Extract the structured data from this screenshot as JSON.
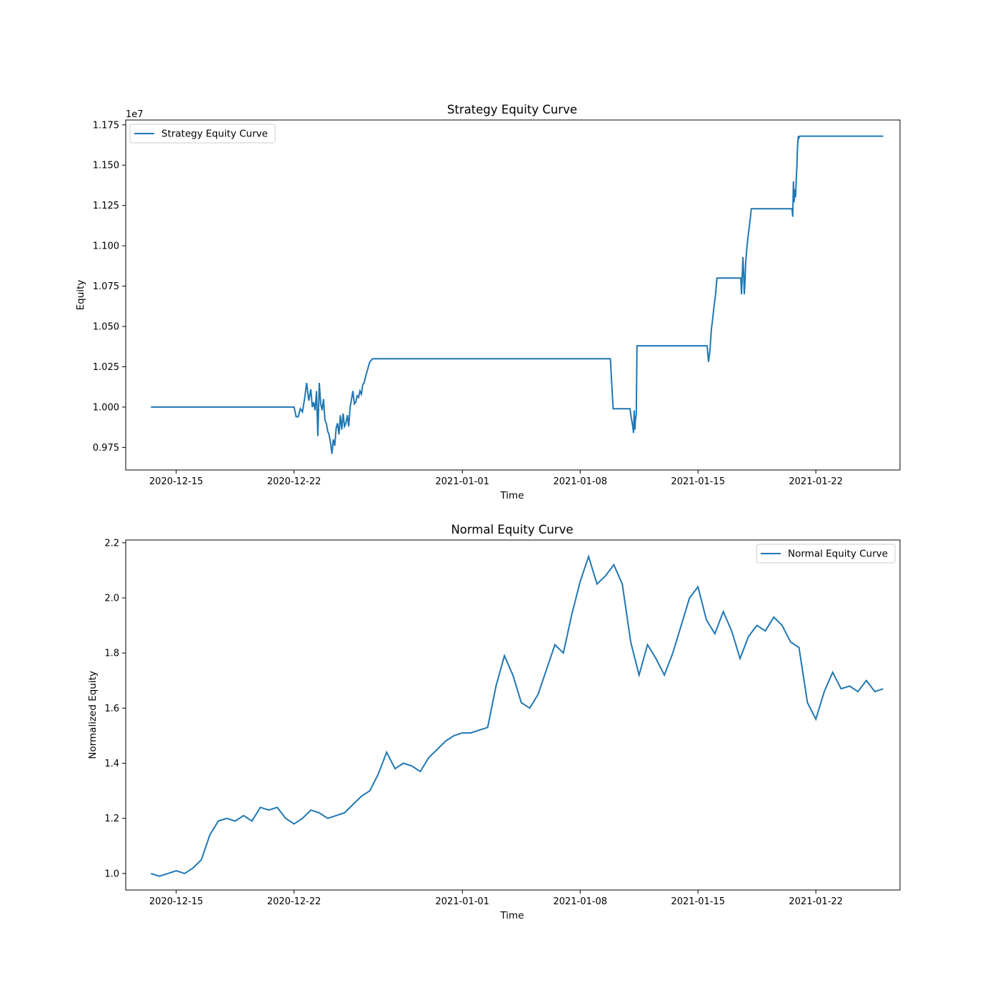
{
  "chart_data": [
    {
      "type": "line",
      "title": "Strategy Equity Curve",
      "xlabel": "Time",
      "ylabel": "Equity",
      "offset_text": "1e7",
      "multiplier": 10000000,
      "xlim": [
        "2020-12-12",
        "2021-01-27"
      ],
      "ylim": [
        9.61,
        11.78
      ],
      "x_ticks": [
        "2020-12-15",
        "2020-12-22",
        "2021-01-01",
        "2021-01-08",
        "2021-01-15",
        "2021-01-22"
      ],
      "y_ticks": [
        9.75,
        10.0,
        10.25,
        10.5,
        10.75,
        11.0,
        11.25,
        11.5,
        11.75
      ],
      "y_tick_labels": [
        "0.975",
        "1.000",
        "1.025",
        "1.050",
        "1.075",
        "1.100",
        "1.125",
        "1.150",
        "1.175"
      ],
      "legend_position": "upper-left",
      "grid": false,
      "series": [
        {
          "name": "Strategy Equity Curve",
          "color": "#1f77b4",
          "x": [
            "2020-12-13 12:00",
            "2020-12-22 00:00",
            "2020-12-22 03:00",
            "2020-12-22 06:00",
            "2020-12-22 09:00",
            "2020-12-22 12:00",
            "2020-12-22 15:00",
            "2020-12-22 18:00",
            "2020-12-22 21:00",
            "2020-12-23 00:00",
            "2020-12-23 02:00",
            "2020-12-23 04:00",
            "2020-12-23 06:00",
            "2020-12-23 08:00",
            "2020-12-23 10:00",
            "2020-12-23 12:00",
            "2020-12-23 14:00",
            "2020-12-23 16:00",
            "2020-12-23 18:00",
            "2020-12-23 20:00",
            "2020-12-23 22:00",
            "2020-12-24 00:00",
            "2020-12-24 02:00",
            "2020-12-24 04:00",
            "2020-12-24 06:00",
            "2020-12-24 08:00",
            "2020-12-24 10:00",
            "2020-12-24 12:00",
            "2020-12-24 14:00",
            "2020-12-24 16:00",
            "2020-12-24 18:00",
            "2020-12-24 20:00",
            "2020-12-24 22:00",
            "2020-12-25 00:00",
            "2020-12-25 02:00",
            "2020-12-25 04:00",
            "2020-12-25 06:00",
            "2020-12-25 08:00",
            "2020-12-25 10:00",
            "2020-12-25 12:00",
            "2020-12-25 14:00",
            "2020-12-25 16:00",
            "2020-12-25 18:00",
            "2020-12-25 20:00",
            "2020-12-25 22:00",
            "2020-12-26 00:00",
            "2020-12-26 02:00",
            "2020-12-26 04:00",
            "2020-12-26 06:00",
            "2020-12-26 08:00",
            "2020-12-26 10:00",
            "2020-12-26 12:00",
            "2020-12-26 14:00",
            "2020-12-26 16:00",
            "2021-01-09 19:00",
            "2021-01-09 23:00",
            "2021-01-10 23:00",
            "2021-01-11 01:00",
            "2021-01-11 03:00",
            "2021-01-11 04:00",
            "2021-01-11 05:00",
            "2021-01-11 06:00",
            "2021-01-11 07:00",
            "2021-01-11 08:00",
            "2021-01-11 09:00",
            "2021-01-15 13:00",
            "2021-01-15 15:00",
            "2021-01-15 17:00",
            "2021-01-15 19:00",
            "2021-01-15 21:00",
            "2021-01-15 23:00",
            "2021-01-16 01:00",
            "2021-01-16 03:00",
            "2021-01-16 05:00",
            "2021-01-17 13:00",
            "2021-01-17 14:00",
            "2021-01-17 16:00",
            "2021-01-17 17:00",
            "2021-01-17 18:00",
            "2021-01-17 19:00",
            "2021-01-17 20:00",
            "2021-01-17 22:00",
            "2021-01-18 00:00",
            "2021-01-18 02:00",
            "2021-01-18 04:00",
            "2021-01-18 06:00",
            "2021-01-20 14:00",
            "2021-01-20 15:00",
            "2021-01-20 16:00",
            "2021-01-20 17:00",
            "2021-01-20 18:00",
            "2021-01-20 19:00",
            "2021-01-20 20:00",
            "2021-01-20 21:00",
            "2021-01-20 22:00",
            "2021-01-20 23:00",
            "2021-01-21 00:00",
            "2021-01-21 01:00",
            "2021-01-21 02:00",
            "2021-01-21 03:00",
            "2021-01-21 04:00",
            "2021-01-21 06:00",
            "2021-01-26 00:00"
          ],
          "y": [
            10.0,
            10.0,
            9.94,
            9.94,
            9.99,
            9.97,
            10.05,
            10.15,
            10.04,
            10.11,
            10.0,
            10.03,
            9.98,
            10.1,
            9.82,
            10.15,
            10.02,
            9.98,
            10.05,
            9.92,
            9.9,
            9.85,
            9.83,
            9.78,
            9.71,
            9.8,
            9.76,
            9.87,
            9.9,
            9.83,
            9.95,
            9.86,
            9.96,
            9.88,
            9.9,
            9.95,
            9.88,
            10.0,
            10.05,
            10.1,
            10.02,
            10.03,
            10.07,
            10.06,
            10.1,
            10.08,
            10.14,
            10.15,
            10.19,
            10.22,
            10.25,
            10.28,
            10.29,
            10.3,
            10.3,
            9.99,
            9.99,
            9.93,
            9.88,
            9.84,
            9.98,
            9.86,
            9.93,
            9.95,
            10.38,
            10.38,
            10.28,
            10.35,
            10.48,
            10.55,
            10.63,
            10.7,
            10.8,
            10.8,
            10.8,
            10.7,
            10.93,
            10.84,
            10.7,
            10.78,
            10.9,
            11.0,
            11.08,
            11.15,
            11.23,
            11.23,
            11.23,
            11.18,
            11.4,
            11.27,
            11.35,
            11.3,
            11.4,
            11.5,
            11.62,
            11.68,
            11.67,
            11.68,
            11.68,
            11.68,
            11.68,
            11.68,
            11.68
          ]
        }
      ]
    },
    {
      "type": "line",
      "title": "Normal Equity Curve",
      "xlabel": "Time",
      "ylabel": "Normalized Equity",
      "xlim": [
        "2020-12-12",
        "2021-01-27"
      ],
      "ylim": [
        0.94,
        2.21
      ],
      "x_ticks": [
        "2020-12-15",
        "2020-12-22",
        "2021-01-01",
        "2021-01-08",
        "2021-01-15",
        "2021-01-22"
      ],
      "y_ticks": [
        1.0,
        1.2,
        1.4,
        1.6,
        1.8,
        2.0,
        2.2
      ],
      "y_tick_labels": [
        "1.0",
        "1.2",
        "1.4",
        "1.6",
        "1.8",
        "2.0",
        "2.2"
      ],
      "legend_position": "upper-right",
      "grid": false,
      "series": [
        {
          "name": "Normal Equity Curve",
          "color": "#1f77b4",
          "x": [
            "2020-12-13 12:00",
            "2020-12-14 00:00",
            "2020-12-14 12:00",
            "2020-12-15 00:00",
            "2020-12-15 12:00",
            "2020-12-16 00:00",
            "2020-12-16 12:00",
            "2020-12-17 00:00",
            "2020-12-17 12:00",
            "2020-12-18 00:00",
            "2020-12-18 12:00",
            "2020-12-19 00:00",
            "2020-12-19 12:00",
            "2020-12-20 00:00",
            "2020-12-20 12:00",
            "2020-12-21 00:00",
            "2020-12-21 12:00",
            "2020-12-22 00:00",
            "2020-12-22 12:00",
            "2020-12-23 00:00",
            "2020-12-23 12:00",
            "2020-12-24 00:00",
            "2020-12-24 12:00",
            "2020-12-25 00:00",
            "2020-12-25 12:00",
            "2020-12-26 00:00",
            "2020-12-26 12:00",
            "2020-12-27 00:00",
            "2020-12-27 12:00",
            "2020-12-28 00:00",
            "2020-12-28 12:00",
            "2020-12-29 00:00",
            "2020-12-29 12:00",
            "2020-12-30 00:00",
            "2020-12-30 12:00",
            "2020-12-31 00:00",
            "2020-12-31 12:00",
            "2021-01-01 00:00",
            "2021-01-01 12:00",
            "2021-01-02 00:00",
            "2021-01-02 12:00",
            "2021-01-03 00:00",
            "2021-01-03 12:00",
            "2021-01-04 00:00",
            "2021-01-04 12:00",
            "2021-01-05 00:00",
            "2021-01-05 12:00",
            "2021-01-06 00:00",
            "2021-01-06 12:00",
            "2021-01-07 00:00",
            "2021-01-07 12:00",
            "2021-01-08 00:00",
            "2021-01-08 12:00",
            "2021-01-09 00:00",
            "2021-01-09 12:00",
            "2021-01-10 00:00",
            "2021-01-10 12:00",
            "2021-01-11 00:00",
            "2021-01-11 12:00",
            "2021-01-12 00:00",
            "2021-01-12 12:00",
            "2021-01-13 00:00",
            "2021-01-13 12:00",
            "2021-01-14 00:00",
            "2021-01-14 12:00",
            "2021-01-15 00:00",
            "2021-01-15 12:00",
            "2021-01-16 00:00",
            "2021-01-16 12:00",
            "2021-01-17 00:00",
            "2021-01-17 12:00",
            "2021-01-18 00:00",
            "2021-01-18 12:00",
            "2021-01-19 00:00",
            "2021-01-19 12:00",
            "2021-01-20 00:00",
            "2021-01-20 12:00",
            "2021-01-21 00:00",
            "2021-01-21 12:00",
            "2021-01-22 00:00",
            "2021-01-22 12:00",
            "2021-01-23 00:00",
            "2021-01-23 12:00",
            "2021-01-24 00:00",
            "2021-01-24 12:00",
            "2021-01-25 00:00",
            "2021-01-25 12:00",
            "2021-01-26 00:00"
          ],
          "y": [
            1.0,
            0.99,
            1.0,
            1.01,
            1.0,
            1.02,
            1.05,
            1.14,
            1.19,
            1.2,
            1.19,
            1.21,
            1.19,
            1.24,
            1.23,
            1.24,
            1.2,
            1.18,
            1.2,
            1.23,
            1.22,
            1.2,
            1.21,
            1.22,
            1.25,
            1.28,
            1.3,
            1.36,
            1.44,
            1.38,
            1.4,
            1.39,
            1.37,
            1.42,
            1.45,
            1.48,
            1.5,
            1.51,
            1.51,
            1.52,
            1.53,
            1.68,
            1.79,
            1.72,
            1.62,
            1.6,
            1.65,
            1.74,
            1.83,
            1.8,
            1.94,
            2.06,
            2.15,
            2.05,
            2.08,
            2.12,
            2.05,
            1.84,
            1.72,
            1.83,
            1.78,
            1.72,
            1.8,
            1.9,
            2.0,
            2.04,
            1.92,
            1.87,
            1.95,
            1.88,
            1.78,
            1.86,
            1.9,
            1.88,
            1.93,
            1.9,
            1.84,
            1.82,
            1.62,
            1.56,
            1.66,
            1.73,
            1.67,
            1.68,
            1.66,
            1.7,
            1.66,
            1.67
          ]
        }
      ]
    }
  ]
}
